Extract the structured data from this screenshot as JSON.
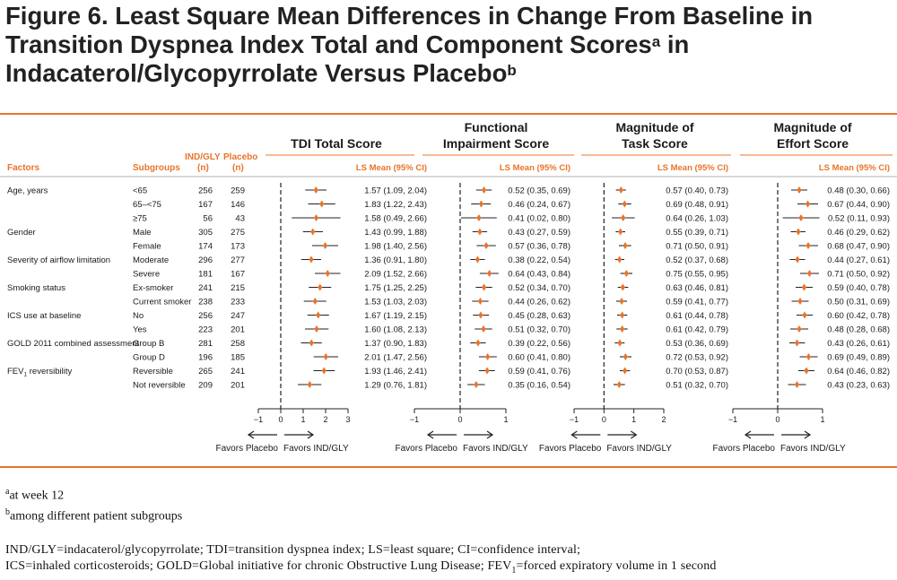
{
  "title": {
    "line1": "Figure 6. Least Square Mean Differences in Change From Baseline in",
    "line2_pre": "Transition Dyspnea Index Total and Component Scores",
    "line2_sup": "a",
    "line2_post": " in",
    "line3_pre": "Indacaterol/Glycopyrrolate Versus Placebo",
    "line3_sup": "b"
  },
  "colors": {
    "accent": "#E8742A",
    "marker": "#E8742A",
    "rule": "#E8742A",
    "text": "#1a1a1a"
  },
  "table": {
    "headers": {
      "factors": "Factors",
      "subgroups": "Subgroups",
      "ind": "IND/GLY",
      "ind_n": "(n)",
      "placebo": "Placebo",
      "placebo_n": "(n)"
    },
    "rows": [
      {
        "factor": "Age, years",
        "subgroup": "<65",
        "ind_n": "256",
        "placebo_n": "259"
      },
      {
        "factor": "",
        "subgroup": "65–<75",
        "ind_n": "167",
        "placebo_n": "146"
      },
      {
        "factor": "",
        "subgroup": "≥75",
        "ind_n": "56",
        "placebo_n": "43"
      },
      {
        "factor": "Gender",
        "subgroup": "Male",
        "ind_n": "305",
        "placebo_n": "275"
      },
      {
        "factor": "",
        "subgroup": "Female",
        "ind_n": "174",
        "placebo_n": "173"
      },
      {
        "factor": "Severity of airflow limitation",
        "subgroup": "Moderate",
        "ind_n": "296",
        "placebo_n": "277"
      },
      {
        "factor": "",
        "subgroup": "Severe",
        "ind_n": "181",
        "placebo_n": "167"
      },
      {
        "factor": "Smoking status",
        "subgroup": "Ex-smoker",
        "ind_n": "241",
        "placebo_n": "215"
      },
      {
        "factor": "",
        "subgroup": "Current smoker",
        "ind_n": "238",
        "placebo_n": "233"
      },
      {
        "factor": "ICS use at baseline",
        "subgroup": "No",
        "ind_n": "256",
        "placebo_n": "247"
      },
      {
        "factor": "",
        "subgroup": "Yes",
        "ind_n": "223",
        "placebo_n": "201"
      },
      {
        "factor": "GOLD 2011 combined assessment",
        "subgroup": "Group B",
        "ind_n": "281",
        "placebo_n": "258"
      },
      {
        "factor": "",
        "subgroup": "Group D",
        "ind_n": "196",
        "placebo_n": "185"
      },
      {
        "factor": "FEV1 reversibility",
        "factor_main": "FEV",
        "factor_sub": "1",
        "factor_rest": " reversibility",
        "subgroup": "Reversible",
        "ind_n": "265",
        "placebo_n": "241"
      },
      {
        "factor": "",
        "subgroup": "Not reversible",
        "ind_n": "209",
        "placebo_n": "201"
      }
    ]
  },
  "chart_data": [
    {
      "type": "forest",
      "title_lines": [
        "TDI Total Score"
      ],
      "value_header": "LS Mean (95% CI)",
      "xlim": [
        -1,
        3
      ],
      "ticks": [
        "−1",
        "0",
        "1",
        "2",
        "3"
      ],
      "tick_values": [
        -1,
        0,
        1,
        2,
        3
      ],
      "favors_left": "Favors Placebo",
      "favors_right": "Favors IND/GLY",
      "points": [
        {
          "mean": 1.57,
          "lo": 1.09,
          "hi": 2.04,
          "label": "1.57 (1.09, 2.04)"
        },
        {
          "mean": 1.83,
          "lo": 1.22,
          "hi": 2.43,
          "label": "1.83 (1.22, 2.43)"
        },
        {
          "mean": 1.58,
          "lo": 0.49,
          "hi": 2.66,
          "label": "1.58 (0.49, 2.66)"
        },
        {
          "mean": 1.43,
          "lo": 0.99,
          "hi": 1.88,
          "label": "1.43 (0.99, 1.88)"
        },
        {
          "mean": 1.98,
          "lo": 1.4,
          "hi": 2.56,
          "label": "1.98 (1.40, 2.56)"
        },
        {
          "mean": 1.36,
          "lo": 0.91,
          "hi": 1.8,
          "label": "1.36 (0.91, 1.80)"
        },
        {
          "mean": 2.09,
          "lo": 1.52,
          "hi": 2.66,
          "label": "2.09 (1.52, 2.66)"
        },
        {
          "mean": 1.75,
          "lo": 1.25,
          "hi": 2.25,
          "label": "1.75 (1.25, 2.25)"
        },
        {
          "mean": 1.53,
          "lo": 1.03,
          "hi": 2.03,
          "label": "1.53 (1.03, 2.03)"
        },
        {
          "mean": 1.67,
          "lo": 1.19,
          "hi": 2.15,
          "label": "1.67 (1.19, 2.15)"
        },
        {
          "mean": 1.6,
          "lo": 1.08,
          "hi": 2.13,
          "label": "1.60 (1.08, 2.13)"
        },
        {
          "mean": 1.37,
          "lo": 0.9,
          "hi": 1.83,
          "label": "1.37 (0.90, 1.83)"
        },
        {
          "mean": 2.01,
          "lo": 1.47,
          "hi": 2.56,
          "label": "2.01 (1.47, 2.56)"
        },
        {
          "mean": 1.93,
          "lo": 1.46,
          "hi": 2.41,
          "label": "1.93 (1.46, 2.41)"
        },
        {
          "mean": 1.29,
          "lo": 0.76,
          "hi": 1.81,
          "label": "1.29 (0.76, 1.81)"
        }
      ]
    },
    {
      "type": "forest",
      "title_lines": [
        "Functional",
        "Impairment Score"
      ],
      "value_header": "LS Mean (95% CI)",
      "xlim": [
        -1,
        1
      ],
      "ticks": [
        "−1",
        "0",
        "1"
      ],
      "tick_values": [
        -1,
        0,
        1
      ],
      "favors_left": "Favors Placebo",
      "favors_right": "Favors IND/GLY",
      "points": [
        {
          "mean": 0.52,
          "lo": 0.35,
          "hi": 0.69,
          "label": "0.52 (0.35, 0.69)"
        },
        {
          "mean": 0.46,
          "lo": 0.24,
          "hi": 0.67,
          "label": "0.46 (0.24, 0.67)"
        },
        {
          "mean": 0.41,
          "lo": 0.02,
          "hi": 0.8,
          "label": "0.41 (0.02, 0.80)"
        },
        {
          "mean": 0.43,
          "lo": 0.27,
          "hi": 0.59,
          "label": "0.43 (0.27, 0.59)"
        },
        {
          "mean": 0.57,
          "lo": 0.36,
          "hi": 0.78,
          "label": "0.57 (0.36, 0.78)"
        },
        {
          "mean": 0.38,
          "lo": 0.22,
          "hi": 0.54,
          "label": "0.38 (0.22, 0.54)"
        },
        {
          "mean": 0.64,
          "lo": 0.43,
          "hi": 0.84,
          "label": "0.64 (0.43, 0.84)"
        },
        {
          "mean": 0.52,
          "lo": 0.34,
          "hi": 0.7,
          "label": "0.52 (0.34, 0.70)"
        },
        {
          "mean": 0.44,
          "lo": 0.26,
          "hi": 0.62,
          "label": "0.44 (0.26, 0.62)"
        },
        {
          "mean": 0.45,
          "lo": 0.28,
          "hi": 0.63,
          "label": "0.45 (0.28, 0.63)"
        },
        {
          "mean": 0.51,
          "lo": 0.32,
          "hi": 0.7,
          "label": "0.51 (0.32, 0.70)"
        },
        {
          "mean": 0.39,
          "lo": 0.22,
          "hi": 0.56,
          "label": "0.39 (0.22, 0.56)"
        },
        {
          "mean": 0.6,
          "lo": 0.41,
          "hi": 0.8,
          "label": "0.60 (0.41, 0.80)"
        },
        {
          "mean": 0.59,
          "lo": 0.41,
          "hi": 0.76,
          "label": "0.59 (0.41, 0.76)"
        },
        {
          "mean": 0.35,
          "lo": 0.16,
          "hi": 0.54,
          "label": "0.35 (0.16, 0.54)"
        }
      ]
    },
    {
      "type": "forest",
      "title_lines": [
        "Magnitude of",
        "Task Score"
      ],
      "value_header": "LS Mean (95% CI)",
      "xlim": [
        -1,
        2
      ],
      "ticks": [
        "−1",
        "0",
        "1",
        "2"
      ],
      "tick_values": [
        -1,
        0,
        1,
        2
      ],
      "favors_left": "Favors Placebo",
      "favors_right": "Favors IND/GLY",
      "points": [
        {
          "mean": 0.57,
          "lo": 0.4,
          "hi": 0.73,
          "label": "0.57 (0.40, 0.73)"
        },
        {
          "mean": 0.69,
          "lo": 0.48,
          "hi": 0.91,
          "label": "0.69 (0.48, 0.91)"
        },
        {
          "mean": 0.64,
          "lo": 0.26,
          "hi": 1.03,
          "label": "0.64 (0.26, 1.03)"
        },
        {
          "mean": 0.55,
          "lo": 0.39,
          "hi": 0.71,
          "label": "0.55 (0.39, 0.71)"
        },
        {
          "mean": 0.71,
          "lo": 0.5,
          "hi": 0.91,
          "label": "0.71 (0.50, 0.91)"
        },
        {
          "mean": 0.52,
          "lo": 0.37,
          "hi": 0.68,
          "label": "0.52 (0.37, 0.68)"
        },
        {
          "mean": 0.75,
          "lo": 0.55,
          "hi": 0.95,
          "label": "0.75 (0.55, 0.95)"
        },
        {
          "mean": 0.63,
          "lo": 0.46,
          "hi": 0.81,
          "label": "0.63 (0.46, 0.81)"
        },
        {
          "mean": 0.59,
          "lo": 0.41,
          "hi": 0.77,
          "label": "0.59 (0.41, 0.77)"
        },
        {
          "mean": 0.61,
          "lo": 0.44,
          "hi": 0.78,
          "label": "0.61 (0.44, 0.78)"
        },
        {
          "mean": 0.61,
          "lo": 0.42,
          "hi": 0.79,
          "label": "0.61 (0.42, 0.79)"
        },
        {
          "mean": 0.53,
          "lo": 0.36,
          "hi": 0.69,
          "label": "0.53 (0.36, 0.69)"
        },
        {
          "mean": 0.72,
          "lo": 0.53,
          "hi": 0.92,
          "label": "0.72 (0.53, 0.92)"
        },
        {
          "mean": 0.7,
          "lo": 0.53,
          "hi": 0.87,
          "label": "0.70 (0.53, 0.87)"
        },
        {
          "mean": 0.51,
          "lo": 0.32,
          "hi": 0.7,
          "label": "0.51 (0.32, 0.70)"
        }
      ]
    },
    {
      "type": "forest",
      "title_lines": [
        "Magnitude of",
        "Effort Score"
      ],
      "value_header": "LS Mean (95% CI)",
      "xlim": [
        -1,
        1
      ],
      "ticks": [
        "−1",
        "0",
        "1"
      ],
      "tick_values": [
        -1,
        0,
        1
      ],
      "favors_left": "Favors Placebo",
      "favors_right": "Favors IND/GLY",
      "points": [
        {
          "mean": 0.48,
          "lo": 0.3,
          "hi": 0.66,
          "label": "0.48 (0.30, 0.66)"
        },
        {
          "mean": 0.67,
          "lo": 0.44,
          "hi": 0.9,
          "label": "0.67 (0.44, 0.90)"
        },
        {
          "mean": 0.52,
          "lo": 0.11,
          "hi": 0.93,
          "label": "0.52 (0.11, 0.93)"
        },
        {
          "mean": 0.46,
          "lo": 0.29,
          "hi": 0.62,
          "label": "0.46 (0.29, 0.62)"
        },
        {
          "mean": 0.68,
          "lo": 0.47,
          "hi": 0.9,
          "label": "0.68 (0.47, 0.90)"
        },
        {
          "mean": 0.44,
          "lo": 0.27,
          "hi": 0.61,
          "label": "0.44 (0.27, 0.61)"
        },
        {
          "mean": 0.71,
          "lo": 0.5,
          "hi": 0.92,
          "label": "0.71 (0.50, 0.92)"
        },
        {
          "mean": 0.59,
          "lo": 0.4,
          "hi": 0.78,
          "label": "0.59 (0.40, 0.78)"
        },
        {
          "mean": 0.5,
          "lo": 0.31,
          "hi": 0.69,
          "label": "0.50 (0.31, 0.69)"
        },
        {
          "mean": 0.6,
          "lo": 0.42,
          "hi": 0.78,
          "label": "0.60 (0.42, 0.78)"
        },
        {
          "mean": 0.48,
          "lo": 0.28,
          "hi": 0.68,
          "label": "0.48 (0.28, 0.68)"
        },
        {
          "mean": 0.43,
          "lo": 0.26,
          "hi": 0.61,
          "label": "0.43 (0.26, 0.61)"
        },
        {
          "mean": 0.69,
          "lo": 0.49,
          "hi": 0.89,
          "label": "0.69 (0.49, 0.89)"
        },
        {
          "mean": 0.64,
          "lo": 0.46,
          "hi": 0.82,
          "label": "0.64 (0.46, 0.82)"
        },
        {
          "mean": 0.43,
          "lo": 0.23,
          "hi": 0.63,
          "label": "0.43 (0.23, 0.63)"
        }
      ]
    }
  ],
  "footnotes": {
    "a_mark": "a",
    "a_text": "at week 12",
    "b_mark": "b",
    "b_text": "among different patient subgroups",
    "abbr_line1": "IND/GLY=indacaterol/glycopyrrolate; TDI=transition dyspnea index; LS=least square; CI=confidence interval;",
    "abbr_line2_pre": "ICS=inhaled corticosteroids; GOLD=Global initiative for chronic Obstructive Lung Disease; FEV",
    "abbr_line2_sub": "1",
    "abbr_line2_post": "=forced expiratory volume in 1 second"
  }
}
